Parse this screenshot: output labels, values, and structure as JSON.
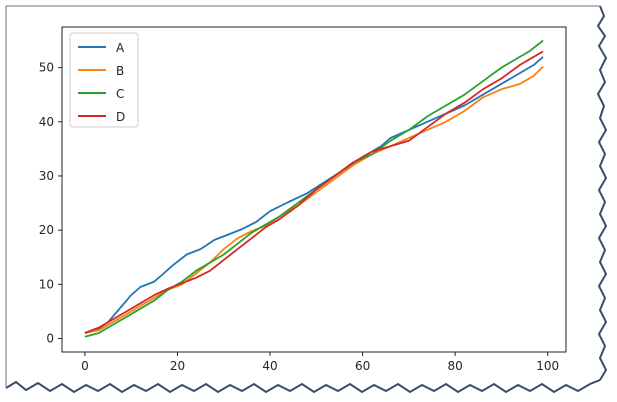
{
  "chart_data": {
    "type": "line",
    "title": "",
    "xlabel": "",
    "ylabel": "",
    "xlim": [
      -4.95,
      103.95
    ],
    "ylim": [
      -2.5,
      57.5
    ],
    "xticks": [
      0,
      20,
      40,
      60,
      80,
      100
    ],
    "yticks": [
      0,
      10,
      20,
      30,
      40,
      50
    ],
    "xtick_labels": [
      "0",
      "20",
      "40",
      "60",
      "80",
      "100"
    ],
    "ytick_labels": [
      "0",
      "10",
      "20",
      "30",
      "40",
      "50"
    ],
    "grid": false,
    "legend_position": "top-left",
    "series": [
      {
        "name": "A",
        "color": "#1f77b4",
        "points": [
          [
            0,
            1
          ],
          [
            3,
            1.8
          ],
          [
            5,
            3
          ],
          [
            8,
            6
          ],
          [
            10,
            8
          ],
          [
            12,
            9.5
          ],
          [
            15,
            10.5
          ],
          [
            17,
            12
          ],
          [
            19,
            13.5
          ],
          [
            22,
            15.5
          ],
          [
            25,
            16.5
          ],
          [
            28,
            18.2
          ],
          [
            31,
            19.2
          ],
          [
            34,
            20.2
          ],
          [
            37,
            21.5
          ],
          [
            40,
            23.5
          ],
          [
            44,
            25.2
          ],
          [
            48,
            26.8
          ],
          [
            52,
            29
          ],
          [
            56,
            31.2
          ],
          [
            60,
            33.5
          ],
          [
            64,
            35.5
          ],
          [
            66,
            37
          ],
          [
            70,
            38.5
          ],
          [
            74,
            40
          ],
          [
            78,
            41.5
          ],
          [
            82,
            43
          ],
          [
            86,
            45
          ],
          [
            90,
            47
          ],
          [
            94,
            49
          ],
          [
            97,
            50.5
          ],
          [
            99,
            52
          ]
        ]
      },
      {
        "name": "B",
        "color": "#ff7f0e",
        "points": [
          [
            0,
            1
          ],
          [
            3,
            1.5
          ],
          [
            6,
            3
          ],
          [
            9,
            4.5
          ],
          [
            12,
            6
          ],
          [
            15,
            7.5
          ],
          [
            18,
            9
          ],
          [
            21,
            10
          ],
          [
            24,
            12
          ],
          [
            27,
            14
          ],
          [
            30,
            16.5
          ],
          [
            33,
            18.5
          ],
          [
            36,
            19.8
          ],
          [
            39,
            20.8
          ],
          [
            42,
            22.5
          ],
          [
            46,
            24.5
          ],
          [
            50,
            27
          ],
          [
            54,
            29.5
          ],
          [
            58,
            32
          ],
          [
            62,
            34
          ],
          [
            66,
            35.5
          ],
          [
            70,
            37
          ],
          [
            74,
            38.5
          ],
          [
            78,
            40
          ],
          [
            82,
            42
          ],
          [
            86,
            44.5
          ],
          [
            90,
            46
          ],
          [
            94,
            47
          ],
          [
            97,
            48.5
          ],
          [
            99,
            50.2
          ]
        ]
      },
      {
        "name": "C",
        "color": "#2ca02c",
        "points": [
          [
            0,
            0.3
          ],
          [
            3,
            1
          ],
          [
            6,
            2.5
          ],
          [
            9,
            4
          ],
          [
            12,
            5.5
          ],
          [
            15,
            7
          ],
          [
            18,
            9
          ],
          [
            21,
            10.5
          ],
          [
            24,
            12.5
          ],
          [
            27,
            14
          ],
          [
            30,
            15.5
          ],
          [
            33,
            17.5
          ],
          [
            36,
            19.5
          ],
          [
            39,
            21
          ],
          [
            42,
            22.5
          ],
          [
            46,
            25
          ],
          [
            50,
            27.5
          ],
          [
            54,
            30
          ],
          [
            58,
            32.5
          ],
          [
            62,
            34
          ],
          [
            66,
            36.5
          ],
          [
            70,
            38.5
          ],
          [
            74,
            41
          ],
          [
            78,
            43
          ],
          [
            82,
            45
          ],
          [
            86,
            47.5
          ],
          [
            90,
            50
          ],
          [
            93,
            51.5
          ],
          [
            96,
            53
          ],
          [
            99,
            55
          ]
        ]
      },
      {
        "name": "D",
        "color": "#d62728",
        "points": [
          [
            0,
            1
          ],
          [
            3,
            2
          ],
          [
            6,
            3.5
          ],
          [
            9,
            5
          ],
          [
            12,
            6.5
          ],
          [
            15,
            8
          ],
          [
            18,
            9.2
          ],
          [
            21,
            10.2
          ],
          [
            24,
            11.2
          ],
          [
            27,
            12.5
          ],
          [
            30,
            14.5
          ],
          [
            33,
            16.5
          ],
          [
            36,
            18.5
          ],
          [
            39,
            20.5
          ],
          [
            42,
            22
          ],
          [
            46,
            24.5
          ],
          [
            50,
            27.5
          ],
          [
            54,
            30
          ],
          [
            58,
            32.5
          ],
          [
            62,
            34.5
          ],
          [
            66,
            35.5
          ],
          [
            70,
            36.5
          ],
          [
            74,
            39
          ],
          [
            78,
            41.5
          ],
          [
            82,
            43.5
          ],
          [
            86,
            46
          ],
          [
            90,
            48
          ],
          [
            94,
            50.5
          ],
          [
            97,
            52
          ],
          [
            99,
            53
          ]
        ]
      }
    ]
  }
}
